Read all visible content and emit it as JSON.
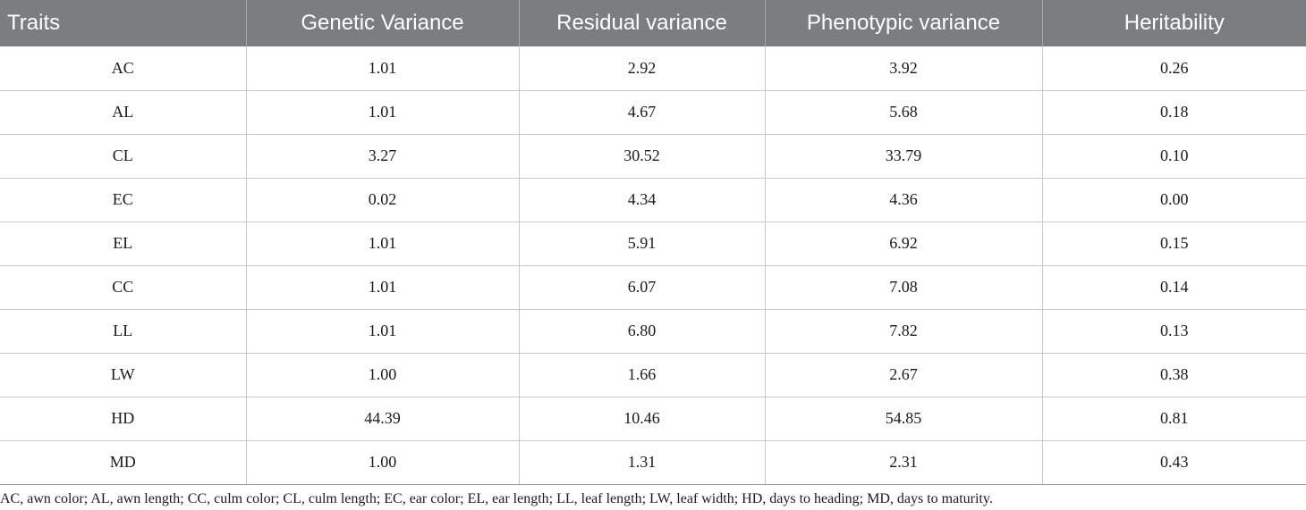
{
  "table": {
    "headers": [
      "Traits",
      "Genetic Variance",
      "Residual variance",
      "Phenotypic variance",
      "Heritability"
    ],
    "rows": [
      [
        "AC",
        "1.01",
        "2.92",
        "3.92",
        "0.26"
      ],
      [
        "AL",
        "1.01",
        "4.67",
        "5.68",
        "0.18"
      ],
      [
        "CL",
        "3.27",
        "30.52",
        "33.79",
        "0.10"
      ],
      [
        "EC",
        "0.02",
        "4.34",
        "4.36",
        "0.00"
      ],
      [
        "EL",
        "1.01",
        "5.91",
        "6.92",
        "0.15"
      ],
      [
        "CC",
        "1.01",
        "6.07",
        "7.08",
        "0.14"
      ],
      [
        "LL",
        "1.01",
        "6.80",
        "7.82",
        "0.13"
      ],
      [
        "LW",
        "1.00",
        "1.66",
        "2.67",
        "0.38"
      ],
      [
        "HD",
        "44.39",
        "10.46",
        "54.85",
        "0.81"
      ],
      [
        "MD",
        "1.00",
        "1.31",
        "2.31",
        "0.43"
      ]
    ]
  },
  "footnote": "AC, awn color; AL, awn length; CC, culm color; CL, culm length; EC, ear color; EL, ear length; LL, leaf length; LW, leaf width; HD, days to heading; MD, days to maturity.",
  "colors": {
    "header_bg": "#7b7e80",
    "header_text": "#ffffff",
    "grid_line": "#c9c9c9"
  }
}
